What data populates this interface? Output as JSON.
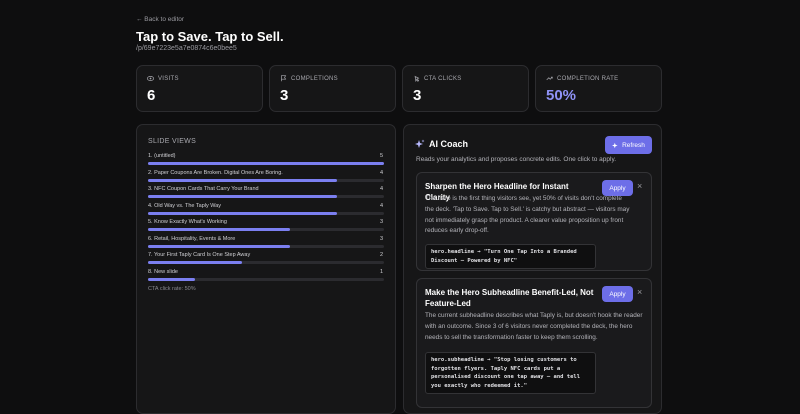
{
  "header": {
    "back": "← Back to editor",
    "title": "Tap to Save. Tap to Sell.",
    "path": "/p/69e7223e5a7e0874c6e0bee5"
  },
  "stats": [
    {
      "label": "VISITS",
      "value": 6
    },
    {
      "label": "COMPLETIONS",
      "value": 3
    },
    {
      "label": "CTA CLICKS",
      "value": 3
    },
    {
      "label": "COMPLETION RATE",
      "value": "50%"
    }
  ],
  "slide_views": {
    "title": "SLIDE VIEWS",
    "rows": [
      {
        "label": "1. (untitled)",
        "views": 5
      },
      {
        "label": "2. Paper Coupons Are Broken. Digital Ones Are Boring.",
        "views": 4
      },
      {
        "label": "3. NFC Coupon Cards That Carry Your Brand",
        "views": 4
      },
      {
        "label": "4. Old Way vs. The Taply Way",
        "views": 4
      },
      {
        "label": "5. Know Exactly What's Working",
        "views": 3
      },
      {
        "label": "6. Retail, Hospitality, Events & More",
        "views": 3
      },
      {
        "label": "7. Your First Taply Card Is One Step Away",
        "views": 2
      },
      {
        "label": "8. New slide",
        "views": 1
      }
    ],
    "footer": "CTA click rate: 50%"
  },
  "coach": {
    "title": "AI Coach",
    "refresh": "Refresh",
    "subtitle": "Reads your analytics and proposes concrete edits. One click to apply.",
    "suggestions": [
      {
        "title": "Sharpen the Hero Headline for Instant Clarity",
        "apply": "Apply",
        "body": "The hero is the first thing visitors see, yet 50% of visits don't complete the deck. 'Tap to Save. Tap to Sell.' is catchy but abstract — visitors may not immediately grasp the product. A clearer value proposition up front reduces early drop-off.",
        "code": "hero.headline → \"Turn One Tap Into a Branded Discount — Powered by NFC\""
      },
      {
        "title": "Make the Hero Subheadline Benefit-Led, Not Feature-Led",
        "apply": "Apply",
        "body": "The current subheadline describes what Taply is, but doesn't hook the reader with an outcome. Since 3 of 6 visitors never completed the deck, the hero needs to sell the transformation faster to keep them scrolling.",
        "code": "hero.subheadline → \"Stop losing customers to forgotten flyers. Taply NFC cards put a personalised discount one tap away — and tell you exactly who redeemed it.\""
      }
    ]
  }
}
